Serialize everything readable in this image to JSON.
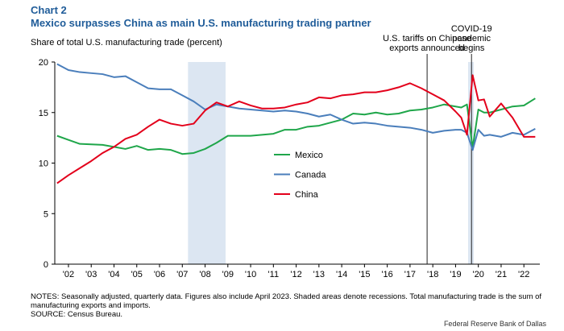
{
  "chart_data": {
    "type": "line",
    "title": "Chart 2",
    "subtitle": "Mexico surpasses China as main U.S. manufacturing trading partner",
    "y_label": "Share of total U.S. manufacturing  trade (percent)",
    "x": [
      2002.0,
      2002.5,
      2003.0,
      2003.5,
      2004.0,
      2004.5,
      2005.0,
      2005.5,
      2006.0,
      2006.5,
      2007.0,
      2007.5,
      2008.0,
      2008.5,
      2009.0,
      2009.5,
      2010.0,
      2010.5,
      2011.0,
      2011.5,
      2012.0,
      2012.5,
      2013.0,
      2013.5,
      2014.0,
      2014.5,
      2015.0,
      2015.5,
      2016.0,
      2016.5,
      2017.0,
      2017.5,
      2018.0,
      2018.5,
      2019.0,
      2019.5,
      2019.75,
      2020.0,
      2020.25,
      2020.5,
      2020.75,
      2021.0,
      2021.5,
      2022.0,
      2022.5,
      2023.0
    ],
    "series": [
      {
        "name": "Mexico",
        "color": "#1fa64a",
        "values": [
          12.7,
          12.3,
          11.9,
          11.85,
          11.8,
          11.6,
          11.4,
          11.7,
          11.3,
          11.4,
          11.3,
          10.9,
          11.0,
          11.4,
          12.0,
          12.7,
          12.7,
          12.7,
          12.8,
          12.9,
          13.3,
          13.3,
          13.6,
          13.7,
          14.0,
          14.3,
          14.9,
          14.8,
          15.0,
          14.8,
          14.9,
          15.2,
          15.3,
          15.5,
          15.8,
          15.6,
          15.5,
          15.8,
          11.5,
          15.3,
          15.0,
          15.0,
          15.3,
          15.6,
          15.7,
          16.4
        ]
      },
      {
        "name": "Canada",
        "color": "#4a7ebb",
        "values": [
          19.8,
          19.2,
          19.0,
          18.9,
          18.8,
          18.5,
          18.6,
          18.0,
          17.4,
          17.3,
          17.3,
          16.7,
          16.1,
          15.3,
          15.8,
          15.6,
          15.4,
          15.3,
          15.2,
          15.1,
          15.2,
          15.1,
          14.9,
          14.6,
          14.8,
          14.3,
          13.9,
          14.0,
          13.9,
          13.7,
          13.6,
          13.5,
          13.3,
          13.0,
          13.2,
          13.3,
          13.3,
          13.0,
          11.3,
          13.3,
          12.7,
          12.8,
          12.6,
          13.0,
          12.8,
          13.4
        ]
      },
      {
        "name": "China",
        "color": "#e3001b",
        "values": [
          8.0,
          8.8,
          9.5,
          10.2,
          11.0,
          11.6,
          12.4,
          12.8,
          13.6,
          14.3,
          13.9,
          13.7,
          13.9,
          15.2,
          16.0,
          15.6,
          16.1,
          15.7,
          15.4,
          15.4,
          15.5,
          15.8,
          16.0,
          16.5,
          16.4,
          16.7,
          16.8,
          17.0,
          17.0,
          17.2,
          17.5,
          17.9,
          17.4,
          16.8,
          16.2,
          15.1,
          14.5,
          12.8,
          18.7,
          16.2,
          16.3,
          14.6,
          15.9,
          14.5,
          12.6,
          12.6
        ]
      }
    ],
    "xlim": [
      2001.9,
      2023.2
    ],
    "xticks": [
      {
        "value": 2002.5,
        "label": "'02"
      },
      {
        "value": 2003.5,
        "label": "'03"
      },
      {
        "value": 2004.5,
        "label": "'04"
      },
      {
        "value": 2005.5,
        "label": "'05"
      },
      {
        "value": 2006.5,
        "label": "'06"
      },
      {
        "value": 2007.5,
        "label": "'07"
      },
      {
        "value": 2008.5,
        "label": "'08"
      },
      {
        "value": 2009.5,
        "label": "'09"
      },
      {
        "value": 2010.5,
        "label": "'10"
      },
      {
        "value": 2011.5,
        "label": "'11"
      },
      {
        "value": 2012.5,
        "label": "'12"
      },
      {
        "value": 2013.5,
        "label": "'13"
      },
      {
        "value": 2014.5,
        "label": "'14"
      },
      {
        "value": 2015.5,
        "label": "'15"
      },
      {
        "value": 2016.5,
        "label": "'16"
      },
      {
        "value": 2017.5,
        "label": "'17"
      },
      {
        "value": 2018.5,
        "label": "'18"
      },
      {
        "value": 2019.5,
        "label": "'19"
      },
      {
        "value": 2020.5,
        "label": "'20"
      },
      {
        "value": 2021.5,
        "label": "'21"
      },
      {
        "value": 2022.5,
        "label": "'22"
      }
    ],
    "ylim": [
      0,
      20
    ],
    "yticks": [
      0,
      5,
      10,
      15,
      20
    ],
    "recessions": [
      [
        2007.75,
        2009.4
      ],
      [
        2020.05,
        2020.3
      ]
    ],
    "recession_color": "#dce6f2",
    "annotations": [
      {
        "x": 2018.25,
        "text": [
          "U.S. tariffs on Chinese",
          "exports announced"
        ]
      },
      {
        "x": 2020.2,
        "text": [
          "COVID-19",
          "pandemic",
          "begins"
        ]
      }
    ],
    "legend": "center",
    "notes": "NOTES: Seasonally adjusted, quarterly data. Figures also include April 2023. Shaded areas denote recessions. Total manufacturing trade is the sum of manufacturing exports and imports.",
    "source": "SOURCE: Census Bureau.",
    "credit": "Federal Reserve Bank of Dallas"
  }
}
